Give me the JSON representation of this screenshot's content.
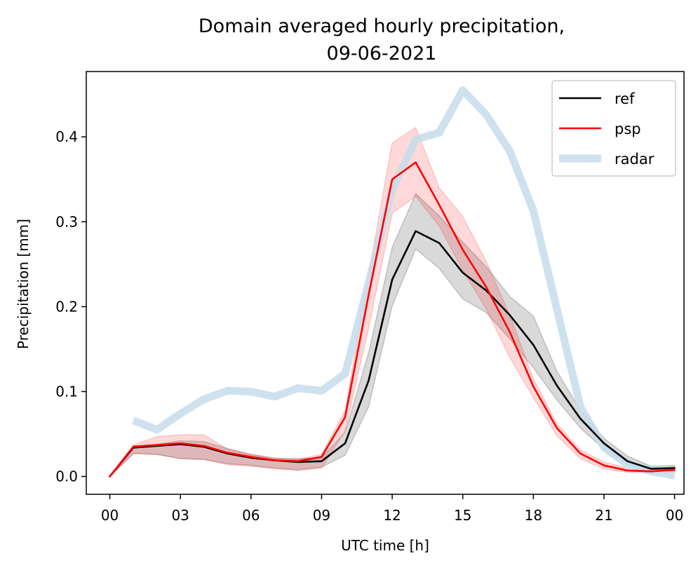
{
  "chart_data": {
    "type": "line",
    "title": "Domain averaged hourly precipitation,",
    "subtitle": "09-06-2021",
    "xlabel": "UTC time [h]",
    "ylabel": "Precipitation [mm]",
    "xlim": [
      -1,
      24.4
    ],
    "ylim": [
      -0.021,
      0.477
    ],
    "x_ticks": [
      "00",
      "03",
      "06",
      "09",
      "12",
      "15",
      "18",
      "21",
      "00"
    ],
    "y_ticks": [
      "0.0",
      "0.1",
      "0.2",
      "0.3",
      "0.4"
    ],
    "legend_position": "upper right",
    "series": [
      {
        "name": "ref",
        "color": "#000000",
        "x": [
          0,
          1,
          2,
          3,
          4,
          5,
          6,
          7,
          8,
          9,
          10,
          11,
          12,
          13,
          14,
          15,
          16,
          17,
          18,
          19,
          20,
          21,
          22,
          23,
          24
        ],
        "values": [
          0.0,
          0.034,
          0.036,
          0.038,
          0.035,
          0.027,
          0.022,
          0.019,
          0.017,
          0.018,
          0.039,
          0.113,
          0.232,
          0.289,
          0.275,
          0.24,
          0.219,
          0.19,
          0.155,
          0.107,
          0.068,
          0.039,
          0.018,
          0.009,
          0.01
        ],
        "band_lower": [
          0.0,
          0.027,
          0.026,
          0.021,
          0.02,
          0.015,
          0.013,
          0.01,
          0.008,
          0.011,
          0.025,
          0.082,
          0.201,
          0.268,
          0.245,
          0.209,
          0.193,
          0.162,
          0.128,
          0.09,
          0.057,
          0.032,
          0.014,
          0.006,
          0.006
        ],
        "band_upper": [
          0.0,
          0.036,
          0.038,
          0.042,
          0.041,
          0.033,
          0.026,
          0.021,
          0.021,
          0.022,
          0.052,
          0.146,
          0.27,
          0.333,
          0.307,
          0.276,
          0.247,
          0.212,
          0.189,
          0.124,
          0.078,
          0.045,
          0.024,
          0.012,
          0.013
        ]
      },
      {
        "name": "psp",
        "color": "#ff0000",
        "x": [
          0,
          1,
          2,
          3,
          4,
          5,
          6,
          7,
          8,
          9,
          10,
          11,
          12,
          13,
          14,
          15,
          16,
          17,
          18,
          19,
          20,
          21,
          22,
          23,
          24
        ],
        "values": [
          0.0,
          0.035,
          0.037,
          0.039,
          0.036,
          0.028,
          0.023,
          0.019,
          0.018,
          0.023,
          0.07,
          0.214,
          0.35,
          0.37,
          0.32,
          0.267,
          0.223,
          0.17,
          0.106,
          0.057,
          0.027,
          0.013,
          0.007,
          0.006,
          0.008
        ],
        "band_lower": [
          0.0,
          0.027,
          0.026,
          0.021,
          0.02,
          0.014,
          0.012,
          0.009,
          0.007,
          0.01,
          0.054,
          0.175,
          0.31,
          0.33,
          0.295,
          0.243,
          0.197,
          0.14,
          0.093,
          0.048,
          0.021,
          0.009,
          0.005,
          0.004,
          0.005
        ],
        "band_upper": [
          0.0,
          0.037,
          0.047,
          0.049,
          0.049,
          0.032,
          0.026,
          0.022,
          0.02,
          0.026,
          0.078,
          0.238,
          0.393,
          0.411,
          0.34,
          0.306,
          0.253,
          0.19,
          0.115,
          0.062,
          0.031,
          0.017,
          0.01,
          0.008,
          0.01
        ]
      },
      {
        "name": "radar",
        "color": "#c6dcec",
        "x": [
          1,
          2,
          3,
          4,
          5,
          6,
          7,
          8,
          9,
          10,
          11,
          12,
          13,
          14,
          15,
          16,
          17,
          18,
          19,
          20,
          21,
          22,
          23,
          24
        ],
        "values": [
          0.066,
          0.055,
          0.074,
          0.091,
          0.101,
          0.1,
          0.094,
          0.104,
          0.101,
          0.121,
          0.228,
          0.338,
          0.397,
          0.405,
          0.455,
          0.426,
          0.383,
          0.313,
          0.197,
          0.082,
          0.034,
          0.014,
          0.006,
          0.001
        ]
      }
    ]
  }
}
